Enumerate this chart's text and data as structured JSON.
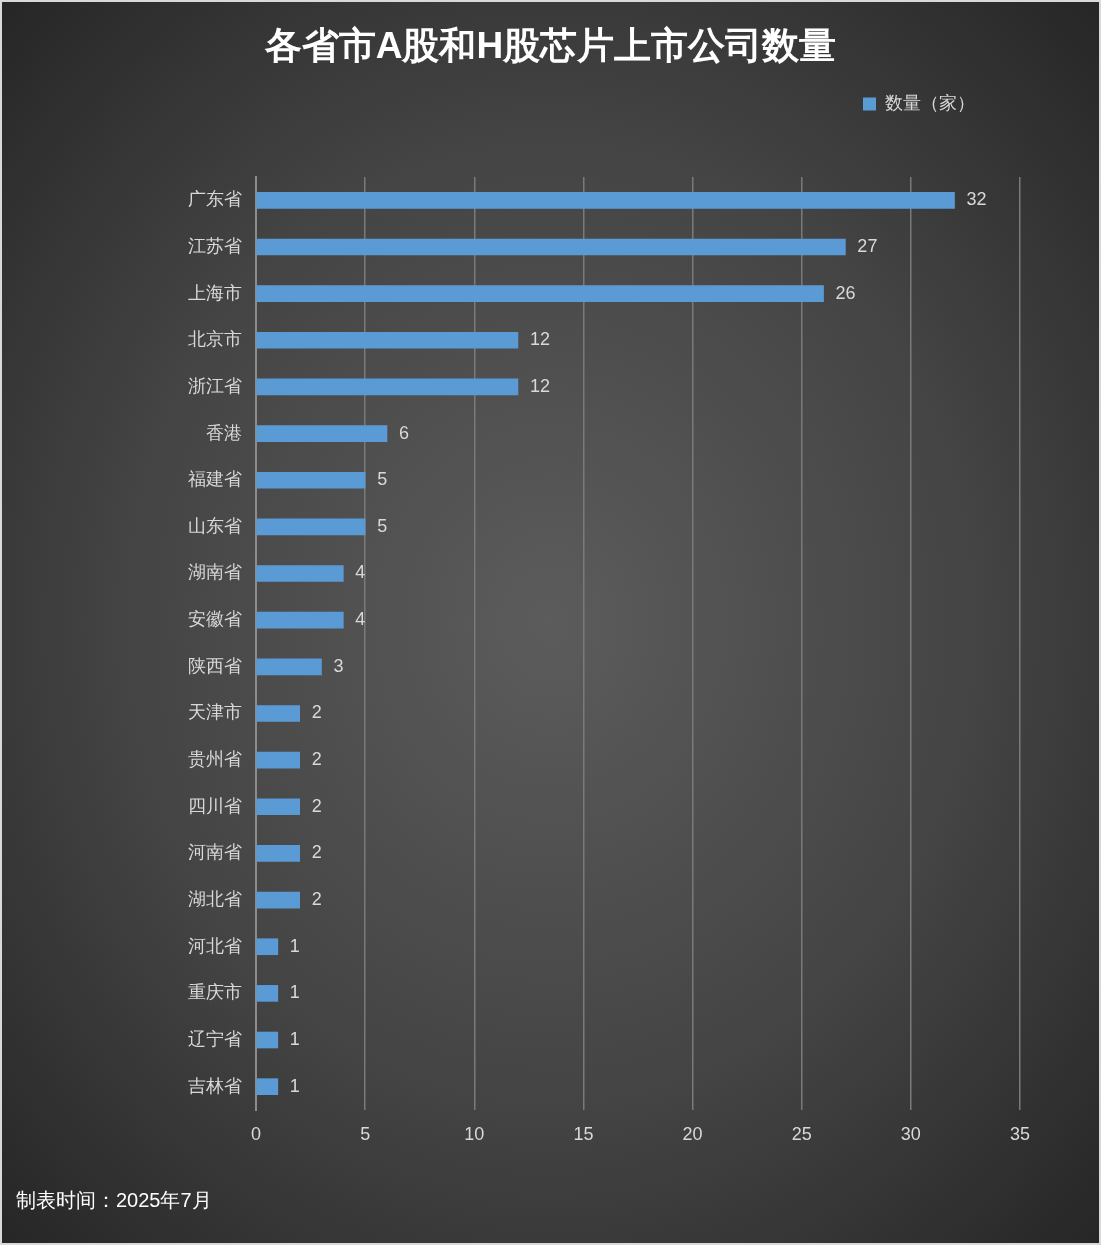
{
  "chart_data": {
    "type": "bar",
    "orientation": "horizontal",
    "title": "各省市A股和H股芯片上市公司数量",
    "categories": [
      "广东省",
      "江苏省",
      "上海市",
      "北京市",
      "浙江省",
      "香港",
      "福建省",
      "山东省",
      "湖南省",
      "安徽省",
      "陕西省",
      "天津市",
      "贵州省",
      "四川省",
      "河南省",
      "湖北省",
      "河北省",
      "重庆市",
      "辽宁省",
      "吉林省"
    ],
    "series": [
      {
        "name": "数量（家）",
        "color": "#5b9bd5",
        "values": [
          32,
          27,
          26,
          12,
          12,
          6,
          5,
          5,
          4,
          4,
          3,
          2,
          2,
          2,
          2,
          2,
          1,
          1,
          1,
          1
        ]
      }
    ],
    "xlim": [
      0,
      35
    ],
    "xticks": [
      0,
      5,
      10,
      15,
      20,
      25,
      30,
      35
    ],
    "grid": "x",
    "legend": "top right",
    "data_labels": true,
    "annotations": [
      "制表时间：2025年7月"
    ]
  }
}
